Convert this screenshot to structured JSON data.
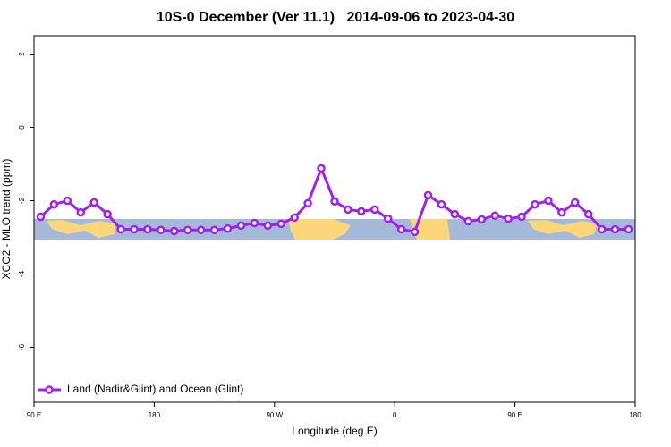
{
  "chart_data": {
    "type": "line",
    "title": "10S-0 December (Ver 11.1)   2014-09-06 to 2023-04-30",
    "x_label": "Longitude (deg E)",
    "y_label": "XCO2 - MLO trend (ppm)",
    "xlim": [
      90,
      540
    ],
    "xticks": [
      {
        "value": 90,
        "label": "90 E"
      },
      180,
      {
        "value": 270,
        "label": "90 W"
      },
      {
        "value": 360,
        "label": "0"
      },
      {
        "value": 450,
        "label": "90 E"
      },
      {
        "value": 540,
        "label": "180"
      }
    ],
    "ylim": [
      -7.5,
      2.5
    ],
    "yticks": [
      2,
      0,
      -2,
      -4,
      -6
    ],
    "legend": "bottom-left",
    "x": [
      95,
      105,
      115,
      125,
      135,
      145,
      155,
      165,
      175,
      185,
      195,
      205,
      215,
      225,
      235,
      245,
      255,
      265,
      275,
      285,
      295,
      305,
      315,
      325,
      335,
      345,
      355,
      365,
      375,
      385,
      395,
      405,
      415,
      425,
      435,
      445,
      455,
      465,
      475,
      485,
      495,
      505,
      515,
      525,
      535
    ],
    "series": [
      {
        "name": "Land (Nadir&Glint) and Ocean (Glint)",
        "color": "#a020f0",
        "values": [
          -2.44,
          -2.1,
          -2.0,
          -2.32,
          -2.05,
          -2.37,
          -2.78,
          -2.78,
          -2.78,
          -2.8,
          -2.83,
          -2.8,
          -2.8,
          -2.8,
          -2.76,
          -2.68,
          -2.61,
          -2.68,
          -2.63,
          -2.46,
          -2.07,
          -1.12,
          -2.02,
          -2.24,
          -2.29,
          -2.24,
          -2.49,
          -2.78,
          -2.85,
          -1.85,
          -2.1,
          -2.37,
          -2.56,
          -2.51,
          -2.41,
          -2.49,
          -2.44,
          -2.1,
          -2.0,
          -2.32,
          -2.05,
          -2.37,
          -2.78,
          -2.78,
          -2.78
        ]
      }
    ]
  }
}
